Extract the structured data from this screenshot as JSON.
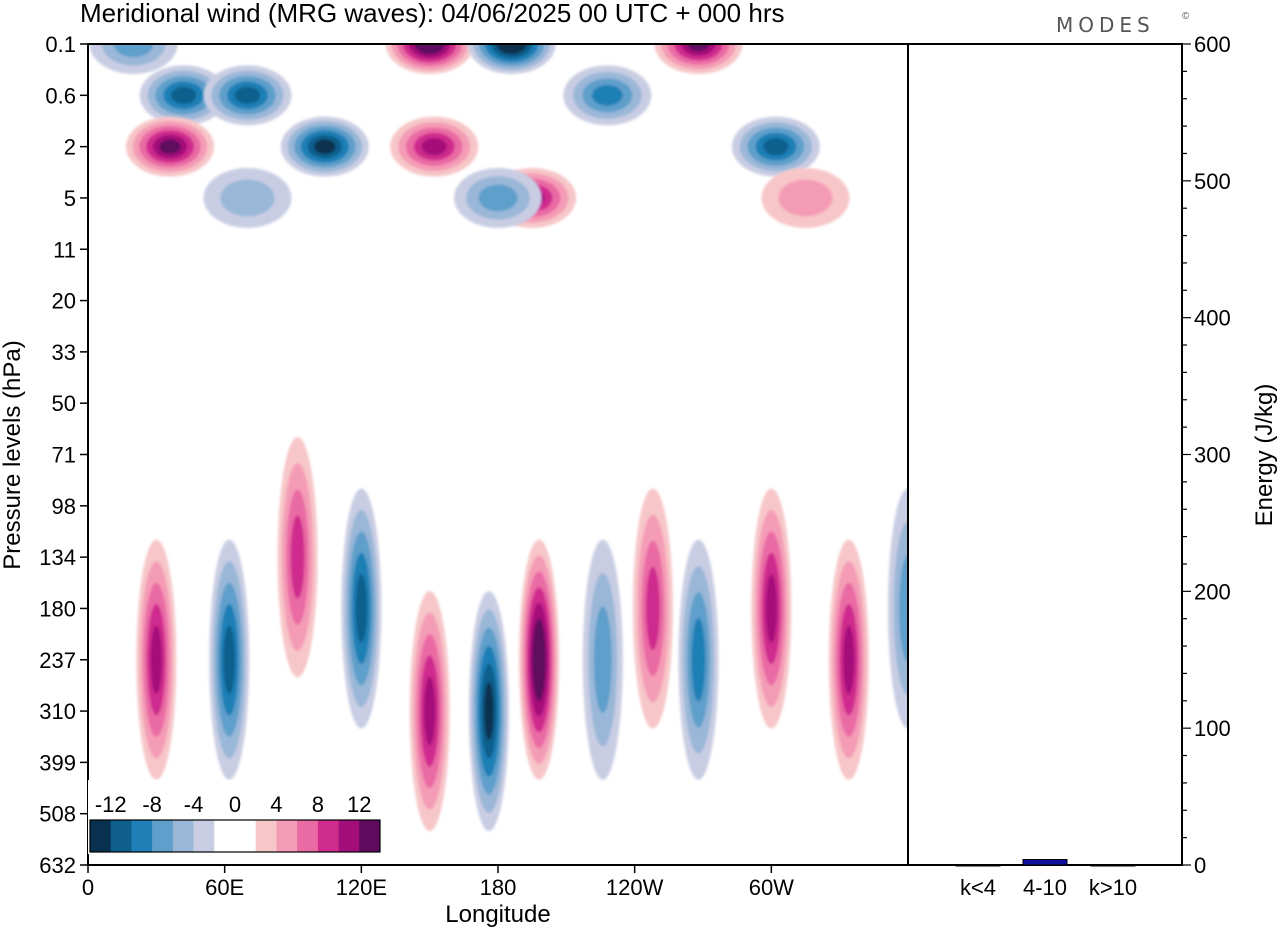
{
  "title": "Meridional wind (MRG waves):  04/06/2025  00 UTC  + 000 hrs",
  "logo": "MODES",
  "logo_mark": "©",
  "chart_data": [
    {
      "type": "heatmap",
      "title": "Meridional wind (MRG waves):  04/06/2025  00 UTC  + 000 hrs",
      "xlabel": "Longitude",
      "ylabel": "Pressure levels (hPa)",
      "x_ticks": [
        "0",
        "60E",
        "120E",
        "180",
        "120W",
        "60W"
      ],
      "x_tick_values": [
        0,
        60,
        120,
        180,
        240,
        300
      ],
      "xlim": [
        0,
        360
      ],
      "y_ticks": [
        "0.1",
        "0.6",
        "2",
        "5",
        "11",
        "20",
        "33",
        "50",
        "71",
        "98",
        "134",
        "180",
        "237",
        "310",
        "399",
        "508",
        "632"
      ],
      "grid": false,
      "colorbar": {
        "labels": [
          "-12",
          "-8",
          "-4",
          "0",
          "4",
          "8",
          "12"
        ],
        "levels": [
          -14,
          -12,
          -10,
          -8,
          -6,
          -4,
          -2,
          0,
          2,
          4,
          6,
          8,
          10,
          12,
          14
        ],
        "colors": [
          "#08304f",
          "#0f5f8c",
          "#1f7fb6",
          "#5f9fcb",
          "#9ab7d8",
          "#c9cde3",
          "#ffffff",
          "#ffffff",
          "#f7c6c8",
          "#f49cb6",
          "#ea6aa4",
          "#cf2b8d",
          "#a40e7a",
          "#5e0a5e"
        ],
        "placement": "bottom-left"
      },
      "features": [
        {
          "lon": 20,
          "level": "0.1",
          "value": -6
        },
        {
          "lon": 42,
          "level": "0.6",
          "value": -10
        },
        {
          "lon": 36,
          "level": "2",
          "value": 12
        },
        {
          "lon": 70,
          "level": "0.6",
          "value": -10
        },
        {
          "lon": 104,
          "level": "2",
          "value": -12
        },
        {
          "lon": 70,
          "level": "5",
          "value": -4
        },
        {
          "lon": 150,
          "level": "0.1",
          "value": 14
        },
        {
          "lon": 186,
          "level": "0.1",
          "value": -14
        },
        {
          "lon": 152,
          "level": "2",
          "value": 10
        },
        {
          "lon": 195,
          "level": "5",
          "value": 10
        },
        {
          "lon": 180,
          "level": "5",
          "value": -6
        },
        {
          "lon": 228,
          "level": "0.6",
          "value": -8
        },
        {
          "lon": 268,
          "level": "0.1",
          "value": 12
        },
        {
          "lon": 302,
          "level": "2",
          "value": -10
        },
        {
          "lon": 315,
          "level": "5",
          "value": 4
        },
        {
          "lon": 30,
          "level": "237",
          "value": 10
        },
        {
          "lon": 62,
          "level": "237",
          "value": -10
        },
        {
          "lon": 120,
          "level": "180",
          "value": -10
        },
        {
          "lon": 150,
          "level": "310",
          "value": 10
        },
        {
          "lon": 176,
          "level": "310",
          "value": -12
        },
        {
          "lon": 198,
          "level": "237",
          "value": 14
        },
        {
          "lon": 226,
          "level": "237",
          "value": -6
        },
        {
          "lon": 248,
          "level": "180",
          "value": 8
        },
        {
          "lon": 268,
          "level": "237",
          "value": -8
        },
        {
          "lon": 300,
          "level": "180",
          "value": 10
        },
        {
          "lon": 334,
          "level": "237",
          "value": 10
        },
        {
          "lon": 360,
          "level": "180",
          "value": -6
        },
        {
          "lon": 92,
          "level": "134",
          "value": 8
        }
      ]
    },
    {
      "type": "bar",
      "categories": [
        "k<4",
        "4-10",
        "k>10"
      ],
      "values": [
        0,
        4,
        0
      ],
      "ylabel": "Energy (J/kg)",
      "ylim": [
        0,
        600
      ],
      "y_ticks": [
        0,
        100,
        200,
        300,
        400,
        500,
        600
      ],
      "bar_color": "#1010a0"
    }
  ]
}
